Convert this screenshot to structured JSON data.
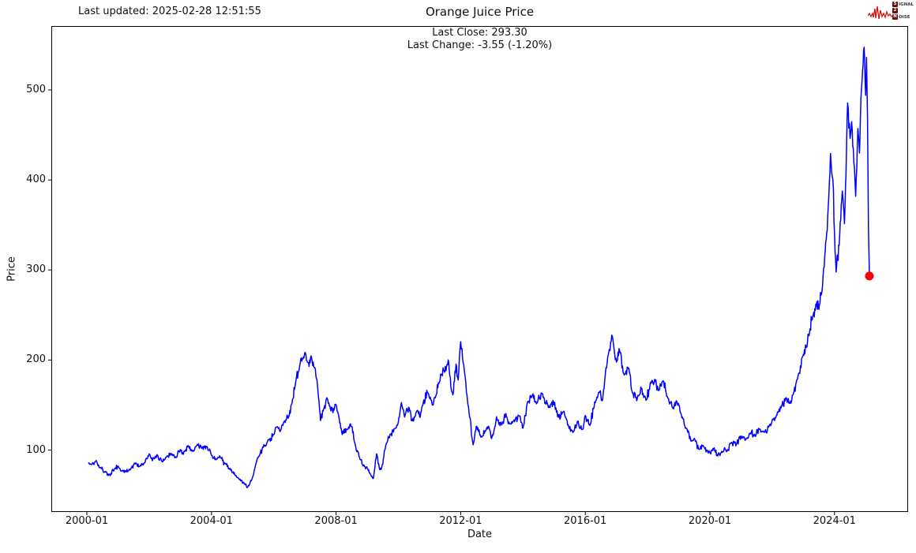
{
  "header": {
    "last_updated": "Last updated: 2025-02-28 12:51:55"
  },
  "logo": {
    "signal_initial": "S",
    "signal_rest": "IGNAL",
    "two": "2",
    "noise_initial": "N",
    "noise_rest": "OISE",
    "wave_color": "#cc1515",
    "box_color": "#6b0f0f"
  },
  "chart_data": {
    "type": "line",
    "title": "Orange Juice Price",
    "xlabel": "Date",
    "ylabel": "Price",
    "annotations": [
      "Last Close: 293.30",
      "Last Change: -3.55 (-1.20%)"
    ],
    "last_close": 293.3,
    "last_change": "-3.55 (-1.20%)",
    "x_ticks": [
      {
        "label": "2000-01",
        "year": 2000
      },
      {
        "label": "2004-01",
        "year": 2004
      },
      {
        "label": "2008-01",
        "year": 2008
      },
      {
        "label": "2012-01",
        "year": 2012
      },
      {
        "label": "2016-01",
        "year": 2016
      },
      {
        "label": "2020-01",
        "year": 2020
      },
      {
        "label": "2024-01",
        "year": 2024
      }
    ],
    "y_ticks": [
      100,
      200,
      300,
      400,
      500
    ],
    "xlim_years": [
      1998.86,
      2026.36
    ],
    "ylim": [
      32,
      572
    ],
    "grid": false,
    "legend": "none",
    "line_color": "#0000ff",
    "end_marker": {
      "color": "#ff0000",
      "year": 2025.12,
      "value": 293.3
    },
    "series": [
      {
        "name": "Orange Juice Price",
        "points_format": [
          "year_decimal",
          "price"
        ],
        "points": [
          [
            2000.05,
            85
          ],
          [
            2000.15,
            84
          ],
          [
            2000.3,
            88
          ],
          [
            2000.45,
            80
          ],
          [
            2000.6,
            76
          ],
          [
            2000.75,
            72
          ],
          [
            2000.9,
            80
          ],
          [
            2001.0,
            82
          ],
          [
            2001.1,
            77
          ],
          [
            2001.25,
            76
          ],
          [
            2001.4,
            79
          ],
          [
            2001.55,
            85
          ],
          [
            2001.7,
            82
          ],
          [
            2001.85,
            86
          ],
          [
            2002.0,
            95
          ],
          [
            2002.1,
            89
          ],
          [
            2002.25,
            94
          ],
          [
            2002.4,
            88
          ],
          [
            2002.55,
            92
          ],
          [
            2002.7,
            96
          ],
          [
            2002.85,
            92
          ],
          [
            2003.0,
            100
          ],
          [
            2003.1,
            96
          ],
          [
            2003.25,
            105
          ],
          [
            2003.4,
            99
          ],
          [
            2003.55,
            106
          ],
          [
            2003.7,
            102
          ],
          [
            2003.85,
            103
          ],
          [
            2004.0,
            95
          ],
          [
            2004.15,
            90
          ],
          [
            2004.3,
            92
          ],
          [
            2004.45,
            84
          ],
          [
            2004.6,
            79
          ],
          [
            2004.75,
            73
          ],
          [
            2004.9,
            67
          ],
          [
            2005.05,
            63
          ],
          [
            2005.15,
            58
          ],
          [
            2005.3,
            68
          ],
          [
            2005.45,
            88
          ],
          [
            2005.55,
            95
          ],
          [
            2005.7,
            105
          ],
          [
            2005.85,
            112
          ],
          [
            2006.0,
            118
          ],
          [
            2006.1,
            125
          ],
          [
            2006.2,
            120
          ],
          [
            2006.35,
            132
          ],
          [
            2006.5,
            140
          ],
          [
            2006.6,
            155
          ],
          [
            2006.7,
            175
          ],
          [
            2006.8,
            187
          ],
          [
            2006.9,
            200
          ],
          [
            2007.0,
            207
          ],
          [
            2007.1,
            196
          ],
          [
            2007.2,
            205
          ],
          [
            2007.3,
            193
          ],
          [
            2007.4,
            174
          ],
          [
            2007.5,
            133
          ],
          [
            2007.6,
            145
          ],
          [
            2007.7,
            158
          ],
          [
            2007.8,
            148
          ],
          [
            2007.9,
            142
          ],
          [
            2008.0,
            151
          ],
          [
            2008.1,
            135
          ],
          [
            2008.2,
            118
          ],
          [
            2008.35,
            124
          ],
          [
            2008.5,
            127
          ],
          [
            2008.6,
            107
          ],
          [
            2008.7,
            98
          ],
          [
            2008.8,
            89
          ],
          [
            2008.9,
            83
          ],
          [
            2009.0,
            80
          ],
          [
            2009.1,
            73
          ],
          [
            2009.2,
            69
          ],
          [
            2009.3,
            96
          ],
          [
            2009.4,
            78
          ],
          [
            2009.5,
            85
          ],
          [
            2009.6,
            107
          ],
          [
            2009.75,
            118
          ],
          [
            2009.9,
            124
          ],
          [
            2010.0,
            132
          ],
          [
            2010.1,
            153
          ],
          [
            2010.2,
            136
          ],
          [
            2010.35,
            147
          ],
          [
            2010.45,
            132
          ],
          [
            2010.6,
            145
          ],
          [
            2010.7,
            136
          ],
          [
            2010.8,
            153
          ],
          [
            2010.95,
            164
          ],
          [
            2011.1,
            149
          ],
          [
            2011.2,
            161
          ],
          [
            2011.3,
            175
          ],
          [
            2011.45,
            190
          ],
          [
            2011.6,
            200
          ],
          [
            2011.7,
            167
          ],
          [
            2011.75,
            160
          ],
          [
            2011.85,
            195
          ],
          [
            2011.92,
            177
          ],
          [
            2012.0,
            222
          ],
          [
            2012.08,
            197
          ],
          [
            2012.15,
            180
          ],
          [
            2012.25,
            147
          ],
          [
            2012.4,
            106
          ],
          [
            2012.5,
            127
          ],
          [
            2012.65,
            115
          ],
          [
            2012.8,
            122
          ],
          [
            2012.9,
            127
          ],
          [
            2013.0,
            113
          ],
          [
            2013.15,
            136
          ],
          [
            2013.3,
            128
          ],
          [
            2013.45,
            140
          ],
          [
            2013.6,
            128
          ],
          [
            2013.75,
            134
          ],
          [
            2013.9,
            139
          ],
          [
            2014.0,
            124
          ],
          [
            2014.15,
            153
          ],
          [
            2014.3,
            162
          ],
          [
            2014.45,
            151
          ],
          [
            2014.6,
            164
          ],
          [
            2014.7,
            153
          ],
          [
            2014.85,
            147
          ],
          [
            2015.0,
            153
          ],
          [
            2015.15,
            136
          ],
          [
            2015.3,
            143
          ],
          [
            2015.45,
            127
          ],
          [
            2015.6,
            119
          ],
          [
            2015.75,
            132
          ],
          [
            2015.9,
            122
          ],
          [
            2016.0,
            139
          ],
          [
            2016.15,
            127
          ],
          [
            2016.3,
            153
          ],
          [
            2016.45,
            165
          ],
          [
            2016.55,
            156
          ],
          [
            2016.7,
            197
          ],
          [
            2016.85,
            227
          ],
          [
            2017.0,
            197
          ],
          [
            2017.1,
            213
          ],
          [
            2017.25,
            182
          ],
          [
            2017.4,
            191
          ],
          [
            2017.5,
            165
          ],
          [
            2017.65,
            156
          ],
          [
            2017.8,
            169
          ],
          [
            2017.95,
            156
          ],
          [
            2018.1,
            174
          ],
          [
            2018.25,
            177
          ],
          [
            2018.35,
            167
          ],
          [
            2018.5,
            176
          ],
          [
            2018.65,
            159
          ],
          [
            2018.8,
            147
          ],
          [
            2018.95,
            153
          ],
          [
            2019.1,
            137
          ],
          [
            2019.25,
            124
          ],
          [
            2019.4,
            109
          ],
          [
            2019.5,
            113
          ],
          [
            2019.65,
            100
          ],
          [
            2019.8,
            104
          ],
          [
            2019.95,
            97
          ],
          [
            2020.1,
            102
          ],
          [
            2020.25,
            94
          ],
          [
            2020.4,
            98
          ],
          [
            2020.55,
            100
          ],
          [
            2020.7,
            108
          ],
          [
            2020.85,
            106
          ],
          [
            2021.0,
            115
          ],
          [
            2021.15,
            111
          ],
          [
            2021.3,
            120
          ],
          [
            2021.45,
            116
          ],
          [
            2021.6,
            124
          ],
          [
            2021.75,
            119
          ],
          [
            2021.9,
            126
          ],
          [
            2022.0,
            133
          ],
          [
            2022.15,
            140
          ],
          [
            2022.3,
            150
          ],
          [
            2022.45,
            158
          ],
          [
            2022.55,
            152
          ],
          [
            2022.7,
            165
          ],
          [
            2022.85,
            185
          ],
          [
            2023.0,
            205
          ],
          [
            2023.1,
            215
          ],
          [
            2023.2,
            232
          ],
          [
            2023.3,
            250
          ],
          [
            2023.4,
            262
          ],
          [
            2023.5,
            255
          ],
          [
            2023.6,
            280
          ],
          [
            2023.7,
            320
          ],
          [
            2023.8,
            370
          ],
          [
            2023.87,
            427
          ],
          [
            2023.95,
            400
          ],
          [
            2024.05,
            296
          ],
          [
            2024.15,
            330
          ],
          [
            2024.25,
            390
          ],
          [
            2024.32,
            351
          ],
          [
            2024.42,
            488
          ],
          [
            2024.5,
            445
          ],
          [
            2024.55,
            467
          ],
          [
            2024.62,
            420
          ],
          [
            2024.68,
            384
          ],
          [
            2024.75,
            455
          ],
          [
            2024.8,
            430
          ],
          [
            2024.85,
            490
          ],
          [
            2024.9,
            520
          ],
          [
            2024.95,
            548
          ],
          [
            2025.0,
            495
          ],
          [
            2025.03,
            535
          ],
          [
            2025.06,
            470
          ],
          [
            2025.09,
            346
          ],
          [
            2025.12,
            293.3
          ]
        ]
      }
    ]
  }
}
